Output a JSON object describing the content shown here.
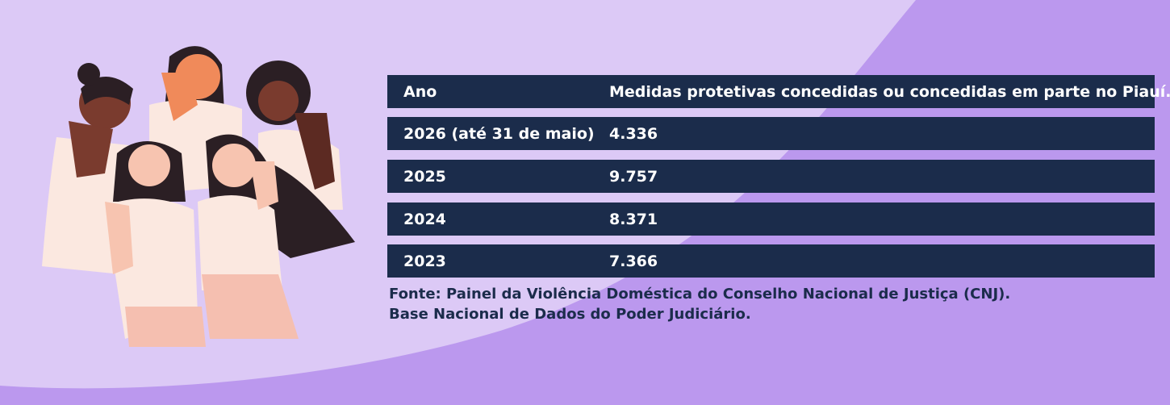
{
  "table": {
    "header": [
      "Ano",
      "Medidas protetivas concedidas ou concedidas em parte no Piauí."
    ],
    "rows": [
      [
        "2026 (até 31 de maio)",
        "4.336"
      ],
      [
        "2025",
        "9.757"
      ],
      [
        "2024",
        "8.371"
      ],
      [
        "2023",
        "7.366"
      ]
    ]
  },
  "source": [
    "Fonte: Painel da Violência Doméstica do Conselho Nacional de Justiça (CNJ).",
    "Base Nacional de Dados do Poder Judiciário."
  ]
}
